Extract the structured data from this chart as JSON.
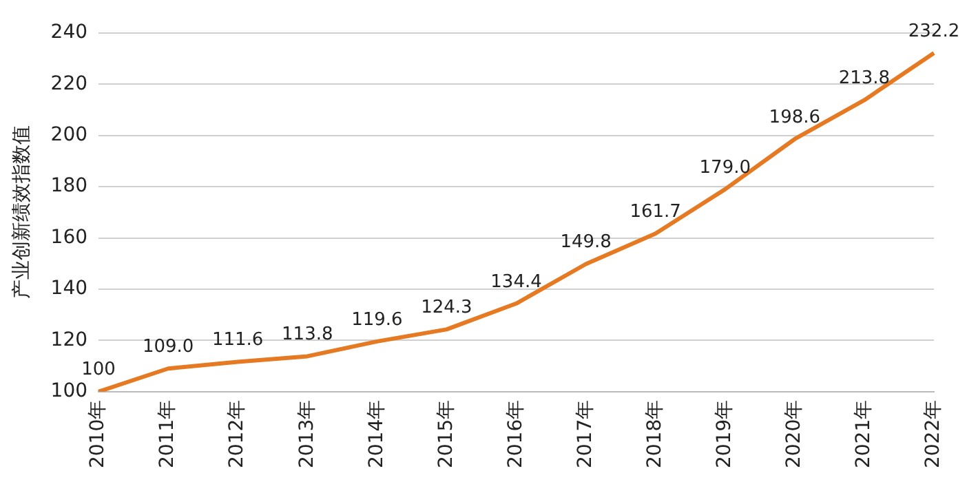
{
  "chart_data": {
    "type": "line",
    "ylabel": "产业创新绩效指数值",
    "categories": [
      "2010年",
      "2011年",
      "2012年",
      "2013年",
      "2014年",
      "2015年",
      "2016年",
      "2017年",
      "2018年",
      "2019年",
      "2020年",
      "2021年",
      "2022年"
    ],
    "series": [
      {
        "color": "#e57a22",
        "values": [
          100,
          109.0,
          111.6,
          113.8,
          119.6,
          124.3,
          134.4,
          149.8,
          161.7,
          179.0,
          198.6,
          213.8,
          232.2
        ],
        "value_labels": [
          "100",
          "109.0",
          "111.6",
          "113.8",
          "119.6",
          "124.3",
          "134.4",
          "149.8",
          "161.7",
          "179.0",
          "198.6",
          "213.8",
          "232.2"
        ]
      }
    ],
    "ylim": [
      100,
      240
    ],
    "yticks": [
      100,
      120,
      140,
      160,
      180,
      200,
      220,
      240
    ],
    "grid": "y",
    "legend": false,
    "marker": "none",
    "line_style": "solid"
  }
}
